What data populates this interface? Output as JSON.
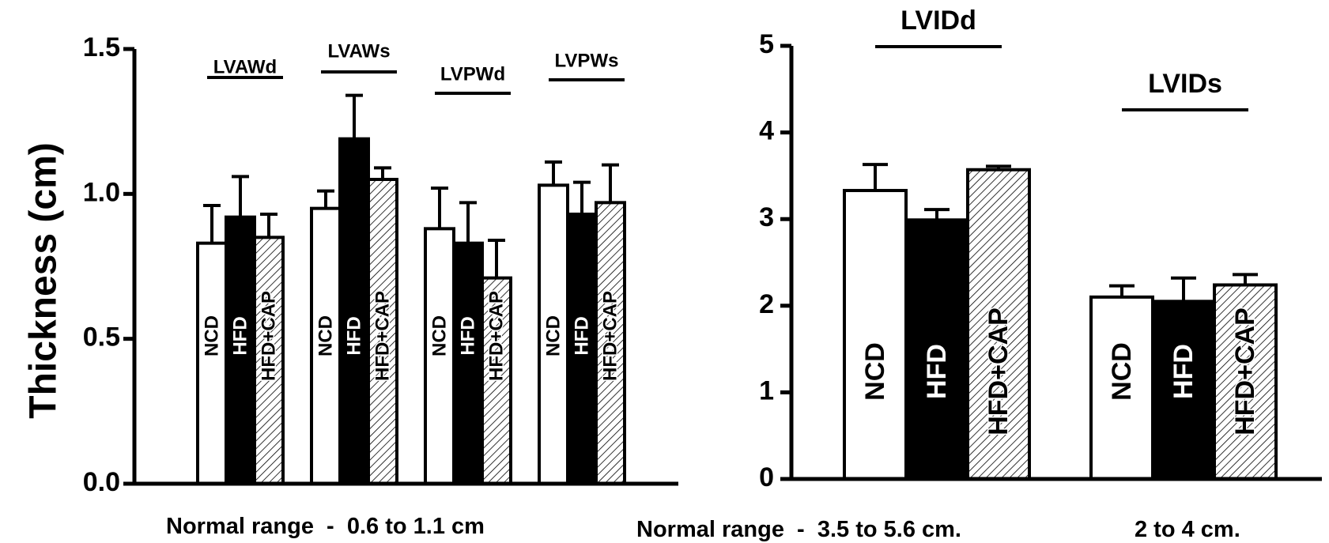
{
  "colors": {
    "NCD": "#ffffff",
    "HFD": "#000000",
    "HFD+CAP": "hatched"
  },
  "chart_data": [
    {
      "type": "bar",
      "ylabel": "Thickness (cm)",
      "ylim": [
        0,
        1.5
      ],
      "yticks": [
        "0.0",
        "0.5",
        "1.0",
        "1.5"
      ],
      "categories": [
        "LVAWd",
        "LVAWs",
        "LVPWd",
        "LVPWs"
      ],
      "series": [
        {
          "name": "NCD",
          "values": [
            0.83,
            0.95,
            0.88,
            1.03
          ],
          "errors": [
            0.13,
            0.06,
            0.14,
            0.08
          ]
        },
        {
          "name": "HFD",
          "values": [
            0.92,
            1.19,
            0.83,
            0.93
          ],
          "errors": [
            0.14,
            0.15,
            0.14,
            0.11
          ]
        },
        {
          "name": "HFD+CAP",
          "values": [
            0.85,
            1.05,
            0.71,
            0.97
          ],
          "errors": [
            0.08,
            0.04,
            0.13,
            0.13
          ]
        }
      ],
      "footer": "Normal range  -  0.6 to 1.1 cm"
    },
    {
      "type": "bar",
      "ylabel": "",
      "ylim": [
        0,
        5
      ],
      "yticks": [
        "0",
        "1",
        "2",
        "3",
        "4",
        "5"
      ],
      "categories": [
        "LVIDd",
        "LVIDs"
      ],
      "series": [
        {
          "name": "NCD",
          "values": [
            3.33,
            2.1
          ],
          "errors": [
            0.3,
            0.13
          ]
        },
        {
          "name": "HFD",
          "values": [
            2.99,
            2.05
          ],
          "errors": [
            0.12,
            0.27
          ]
        },
        {
          "name": "HFD+CAP",
          "values": [
            3.57,
            2.24
          ],
          "errors": [
            0.04,
            0.12
          ]
        }
      ],
      "footer": "Normal range  -  3.5 to 5.6 cm.",
      "footer2": "2 to 4 cm."
    }
  ]
}
